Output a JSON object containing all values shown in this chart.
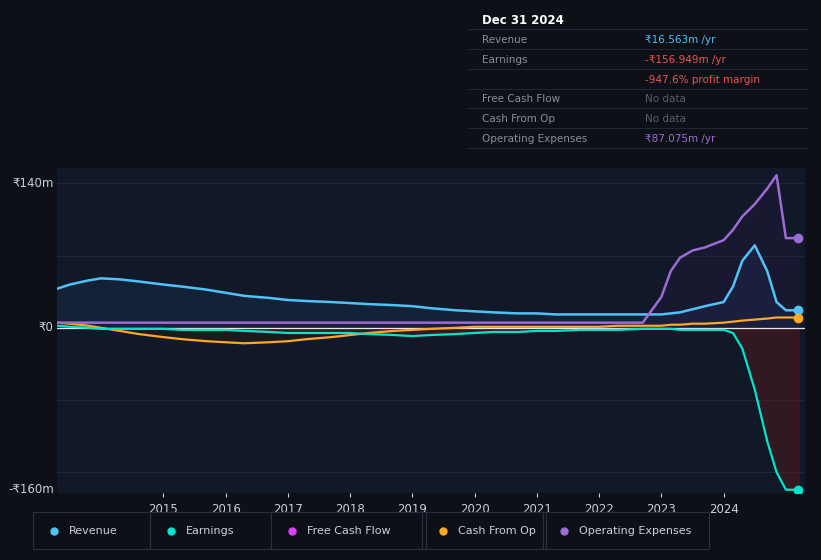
{
  "bg_color": "#0d1117",
  "plot_bg": "#111827",
  "grid_color": "#1e2d40",
  "text_color": "#c8d0dc",
  "ylim": [
    -160,
    155
  ],
  "xlim": [
    2013.3,
    2025.3
  ],
  "ylabel_top": "₹140m",
  "ylabel_zero": "₹0",
  "ylabel_bottom": "-₹160m",
  "xticks": [
    2015,
    2016,
    2017,
    2018,
    2019,
    2020,
    2021,
    2022,
    2023,
    2024
  ],
  "info_box_date": "Dec 31 2024",
  "info_rows": [
    {
      "label": "Revenue",
      "value": "₹16.563m /yr",
      "vc": "#4fc3f7",
      "lc": "#888e9a"
    },
    {
      "label": "Earnings",
      "value": "-₹156.949m /yr",
      "vc": "#ef5350",
      "lc": "#888e9a"
    },
    {
      "label": "",
      "value": "-947.6% profit margin",
      "vc": "#ef5350",
      "lc": "#ef5350"
    },
    {
      "label": "Free Cash Flow",
      "value": "No data",
      "vc": "#555e6a",
      "lc": "#888e9a"
    },
    {
      "label": "Cash From Op",
      "value": "No data",
      "vc": "#555e6a",
      "lc": "#888e9a"
    },
    {
      "label": "Operating Expenses",
      "value": "₹87.075m /yr",
      "vc": "#9c6cd4",
      "lc": "#888e9a"
    }
  ],
  "legend": [
    {
      "label": "Revenue",
      "color": "#4fc3f7"
    },
    {
      "label": "Earnings",
      "color": "#00e5cc"
    },
    {
      "label": "Free Cash Flow",
      "color": "#e040fb"
    },
    {
      "label": "Cash From Op",
      "color": "#ffa726"
    },
    {
      "label": "Operating Expenses",
      "color": "#9c6cd4"
    }
  ],
  "t": [
    2013.3,
    2013.5,
    2013.8,
    2014.0,
    2014.3,
    2014.6,
    2015.0,
    2015.3,
    2015.7,
    2016.0,
    2016.3,
    2016.7,
    2017.0,
    2017.3,
    2017.7,
    2018.0,
    2018.3,
    2018.7,
    2019.0,
    2019.3,
    2019.7,
    2020.0,
    2020.3,
    2020.7,
    2021.0,
    2021.3,
    2021.7,
    2022.0,
    2022.3,
    2022.7,
    2023.0,
    2023.15,
    2023.3,
    2023.5,
    2023.7,
    2024.0,
    2024.15,
    2024.3,
    2024.5,
    2024.7,
    2024.85,
    2025.0,
    2025.2
  ],
  "rev": [
    38,
    42,
    46,
    48,
    47,
    45,
    42,
    40,
    37,
    34,
    31,
    29,
    27,
    26,
    25,
    24,
    23,
    22,
    21,
    19,
    17,
    16,
    15,
    14,
    14,
    13,
    13,
    13,
    13,
    13,
    13,
    14,
    15,
    18,
    21,
    25,
    40,
    65,
    80,
    55,
    25,
    17,
    17
  ],
  "earn": [
    2,
    1,
    0,
    -1,
    -1,
    -1,
    -1,
    -2,
    -2,
    -2,
    -3,
    -4,
    -5,
    -5,
    -5,
    -5,
    -6,
    -7,
    -8,
    -7,
    -6,
    -5,
    -4,
    -4,
    -3,
    -3,
    -2,
    -2,
    -2,
    -1,
    -1,
    -1,
    -2,
    -2,
    -2,
    -2,
    -5,
    -20,
    -60,
    -110,
    -140,
    -157,
    -157
  ],
  "cf": [
    5,
    4,
    2,
    0,
    -3,
    -6,
    -9,
    -11,
    -13,
    -14,
    -15,
    -14,
    -13,
    -11,
    -9,
    -7,
    -5,
    -3,
    -2,
    -1,
    0,
    1,
    1,
    1,
    1,
    1,
    1,
    1,
    2,
    2,
    2,
    3,
    3,
    4,
    4,
    5,
    6,
    7,
    8,
    9,
    10,
    10,
    10
  ],
  "opex": [
    5,
    5,
    5,
    5,
    5,
    5,
    5,
    5,
    5,
    5,
    5,
    5,
    5,
    5,
    5,
    5,
    5,
    5,
    5,
    5,
    5,
    5,
    5,
    5,
    5,
    5,
    5,
    5,
    5,
    5,
    30,
    55,
    68,
    75,
    78,
    85,
    95,
    108,
    120,
    135,
    148,
    87,
    87
  ]
}
